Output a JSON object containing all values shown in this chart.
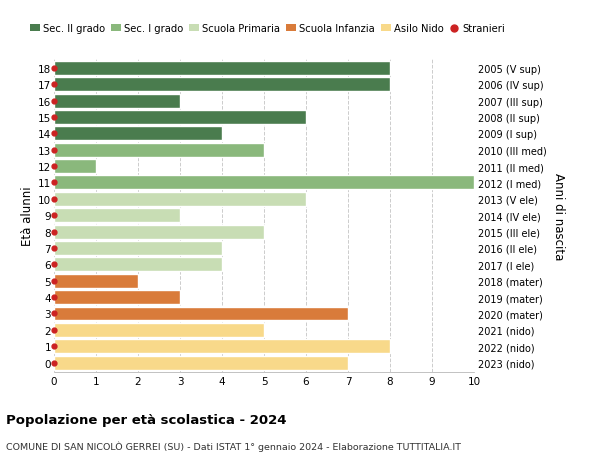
{
  "ages": [
    18,
    17,
    16,
    15,
    14,
    13,
    12,
    11,
    10,
    9,
    8,
    7,
    6,
    5,
    4,
    3,
    2,
    1,
    0
  ],
  "right_labels": [
    "2005 (V sup)",
    "2006 (IV sup)",
    "2007 (III sup)",
    "2008 (II sup)",
    "2009 (I sup)",
    "2010 (III med)",
    "2011 (II med)",
    "2012 (I med)",
    "2013 (V ele)",
    "2014 (IV ele)",
    "2015 (III ele)",
    "2016 (II ele)",
    "2017 (I ele)",
    "2018 (mater)",
    "2019 (mater)",
    "2020 (mater)",
    "2021 (nido)",
    "2022 (nido)",
    "2023 (nido)"
  ],
  "values": [
    8,
    8,
    3,
    6,
    4,
    5,
    1,
    10,
    6,
    3,
    5,
    4,
    4,
    2,
    3,
    7,
    5,
    8,
    7
  ],
  "bar_colors": [
    "#4a7c4e",
    "#4a7c4e",
    "#4a7c4e",
    "#4a7c4e",
    "#4a7c4e",
    "#8ab87c",
    "#8ab87c",
    "#8ab87c",
    "#c8ddb4",
    "#c8ddb4",
    "#c8ddb4",
    "#c8ddb4",
    "#c8ddb4",
    "#d97b3a",
    "#d97b3a",
    "#d97b3a",
    "#f8d98a",
    "#f8d98a",
    "#f8d98a"
  ],
  "legend_labels": [
    "Sec. II grado",
    "Sec. I grado",
    "Scuola Primaria",
    "Scuola Infanzia",
    "Asilo Nido",
    "Stranieri"
  ],
  "legend_colors": [
    "#4a7c4e",
    "#8ab87c",
    "#c8ddb4",
    "#d97b3a",
    "#f8d98a",
    "#cc2222"
  ],
  "stranieri_dot_color": "#cc2222",
  "ylabel_left": "Età alunni",
  "ylabel_right": "Anni di nascita",
  "xlim": [
    0,
    10
  ],
  "xticks": [
    0,
    1,
    2,
    3,
    4,
    5,
    6,
    7,
    8,
    9,
    10
  ],
  "title_bold": "Popolazione per età scolastica - 2024",
  "subtitle": "COMUNE DI SAN NICOLÒ GERREI (SU) - Dati ISTAT 1° gennaio 2024 - Elaborazione TUTTITALIA.IT",
  "bg_color": "#ffffff",
  "bar_edge_color": "#ffffff",
  "grid_color": "#cccccc",
  "bar_height": 0.85,
  "ylim_low": -0.55,
  "ylim_high": 18.55
}
